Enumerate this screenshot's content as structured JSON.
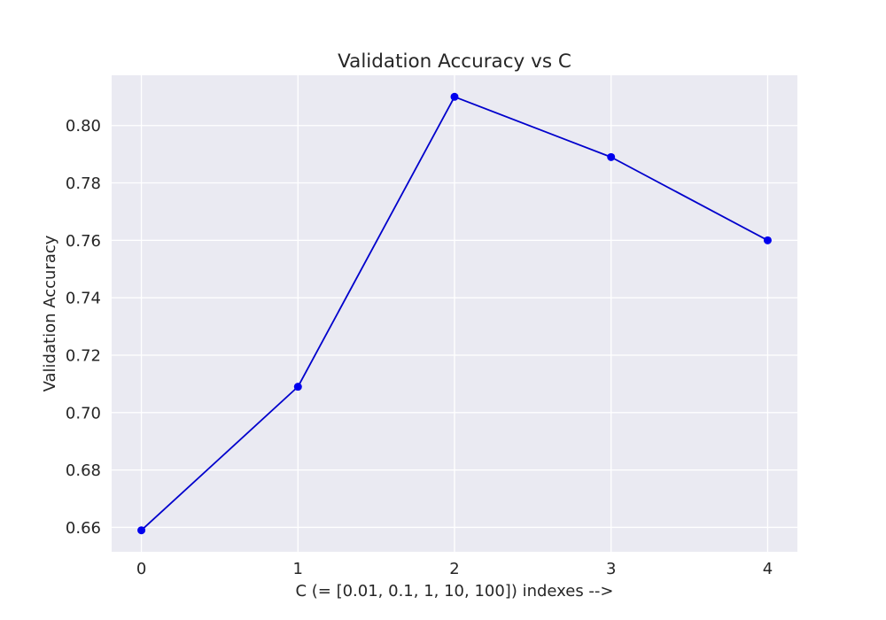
{
  "chart_data": {
    "type": "line",
    "title": "Validation Accuracy vs C",
    "xlabel": "C (= [0.01, 0.1, 1, 10, 100]) indexes -->",
    "ylabel": "Validation Accuracy",
    "x": [
      0,
      1,
      2,
      3,
      4
    ],
    "series": [
      {
        "values": [
          0.659,
          0.709,
          0.81,
          0.789,
          0.76
        ]
      }
    ],
    "xlim": [
      -0.19,
      4.19
    ],
    "ylim": [
      0.6515,
      0.8175
    ],
    "xticks": [
      0,
      1,
      2,
      3,
      4
    ],
    "xtick_labels": [
      "0",
      "1",
      "2",
      "3",
      "4"
    ],
    "yticks": [
      0.66,
      0.68,
      0.7,
      0.72,
      0.74,
      0.76,
      0.78,
      0.8
    ],
    "ytick_labels": [
      "0.66",
      "0.68",
      "0.70",
      "0.72",
      "0.74",
      "0.76",
      "0.78",
      "0.80"
    ],
    "grid": true,
    "legend": "none",
    "colors": {
      "line": "#0000cc",
      "marker": "#0000ee",
      "plot_background": "#eaeaf2",
      "grid": "#ffffff",
      "text": "#262626"
    }
  }
}
